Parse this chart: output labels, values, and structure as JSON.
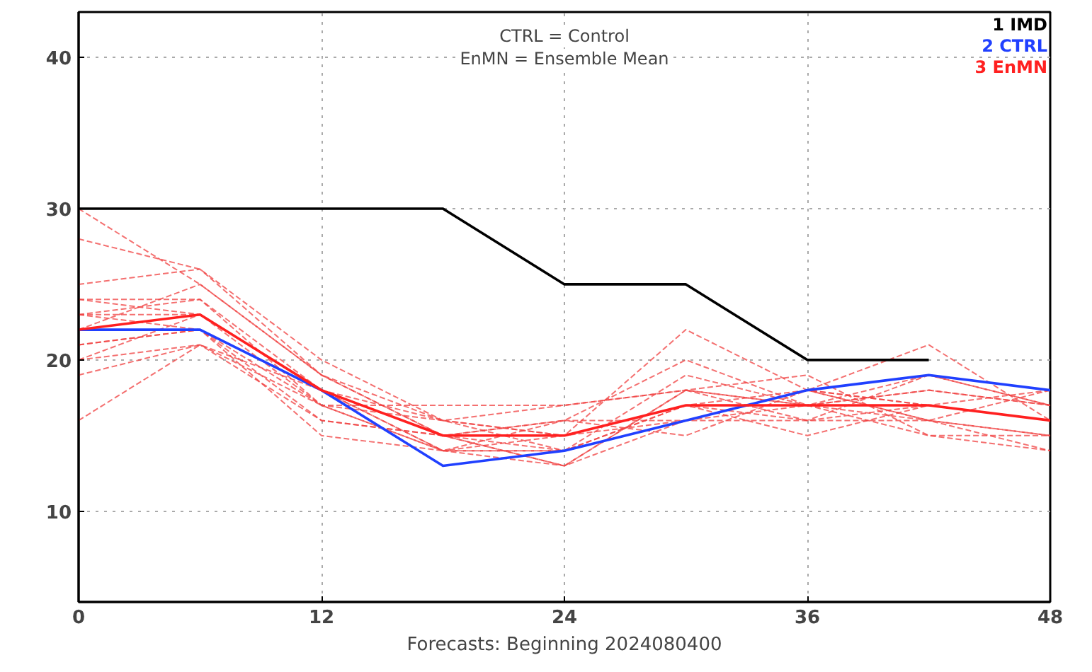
{
  "chart_data": {
    "type": "line",
    "x": [
      0,
      6,
      12,
      18,
      24,
      30,
      36,
      42,
      48
    ],
    "xlabel": "Forecasts: Beginning 2024080400",
    "annotations": [
      "CTRL = Control",
      "EnMN = Ensemble Mean"
    ],
    "xlim": [
      0,
      48
    ],
    "ylim": [
      4,
      43
    ],
    "xticks": [
      0,
      12,
      24,
      36,
      48
    ],
    "yticks": [
      10,
      20,
      30,
      40
    ],
    "grid": true,
    "marker": "none",
    "series": [
      {
        "color": "#f04040",
        "line_style": "dashed",
        "values": [
          30,
          25,
          19,
          16,
          15,
          16,
          18,
          17,
          16
        ]
      },
      {
        "color": "#f04040",
        "line_style": "dashed",
        "values": [
          28,
          26,
          20,
          16,
          14,
          17,
          17,
          18,
          17
        ]
      },
      {
        "color": "#f04040",
        "line_style": "dashed",
        "values": [
          25,
          26,
          19,
          15,
          15,
          22,
          18,
          16,
          15
        ]
      },
      {
        "color": "#f04040",
        "line_style": "dashed",
        "values": [
          24,
          24,
          18,
          15,
          16,
          20,
          17,
          17,
          18
        ]
      },
      {
        "color": "#f04040",
        "line_style": "dashed",
        "values": [
          23,
          24,
          17,
          14,
          14,
          19,
          17,
          19,
          17
        ]
      },
      {
        "color": "#f04040",
        "line_style": "dashed",
        "values": [
          23,
          23,
          18,
          15,
          13,
          18,
          16,
          17,
          16
        ]
      },
      {
        "color": "#f04040",
        "line_style": "dashed",
        "values": [
          22,
          22,
          18,
          14,
          15,
          17,
          18,
          21,
          16
        ]
      },
      {
        "color": "#f04040",
        "line_style": "dashed",
        "values": [
          21,
          22,
          17,
          16,
          17,
          18,
          19,
          15,
          14
        ]
      },
      {
        "color": "#f04040",
        "line_style": "dashed",
        "values": [
          20,
          21,
          16,
          15,
          16,
          16,
          16,
          16,
          15
        ]
      },
      {
        "color": "#f04040",
        "line_style": "dashed",
        "values": [
          19,
          21,
          18,
          14,
          14,
          17,
          15,
          17,
          16
        ]
      },
      {
        "color": "#f04040",
        "line_style": "dashed",
        "values": [
          16,
          21,
          17,
          14,
          13,
          16,
          17,
          16,
          14
        ]
      },
      {
        "color": "#f04040",
        "line_style": "dashed",
        "values": [
          24,
          23,
          17,
          17,
          17,
          18,
          17,
          18,
          17
        ]
      },
      {
        "color": "#f04040",
        "line_style": "dashed",
        "values": [
          21,
          22,
          15,
          14,
          16,
          15,
          18,
          16,
          18
        ]
      },
      {
        "color": "#f04040",
        "line_style": "dashed",
        "values": [
          22,
          25,
          19,
          15,
          13,
          18,
          17,
          15,
          15
        ]
      },
      {
        "color": "#f04040",
        "line_style": "dashed",
        "values": [
          20,
          23,
          18,
          16,
          15,
          17,
          16,
          19,
          17
        ]
      },
      {
        "color": "#f04040",
        "line_style": "dashed",
        "values": [
          23,
          22,
          16,
          15,
          14,
          16,
          18,
          17,
          16
        ]
      },
      {
        "name": "1 IMD",
        "color": "#000000",
        "line_style": "solid",
        "values": [
          30,
          30,
          30,
          30,
          25,
          25,
          20,
          20,
          null
        ]
      },
      {
        "name": "2 CTRL",
        "color": "#2040ff",
        "line_style": "solid",
        "values": [
          22,
          22,
          18,
          13,
          14,
          16,
          18,
          19,
          18
        ]
      },
      {
        "name": "3 EnMN",
        "color": "#ff2020",
        "line_style": "solid",
        "values": [
          22,
          23,
          18,
          15,
          15,
          17,
          17,
          17,
          16
        ]
      }
    ]
  }
}
